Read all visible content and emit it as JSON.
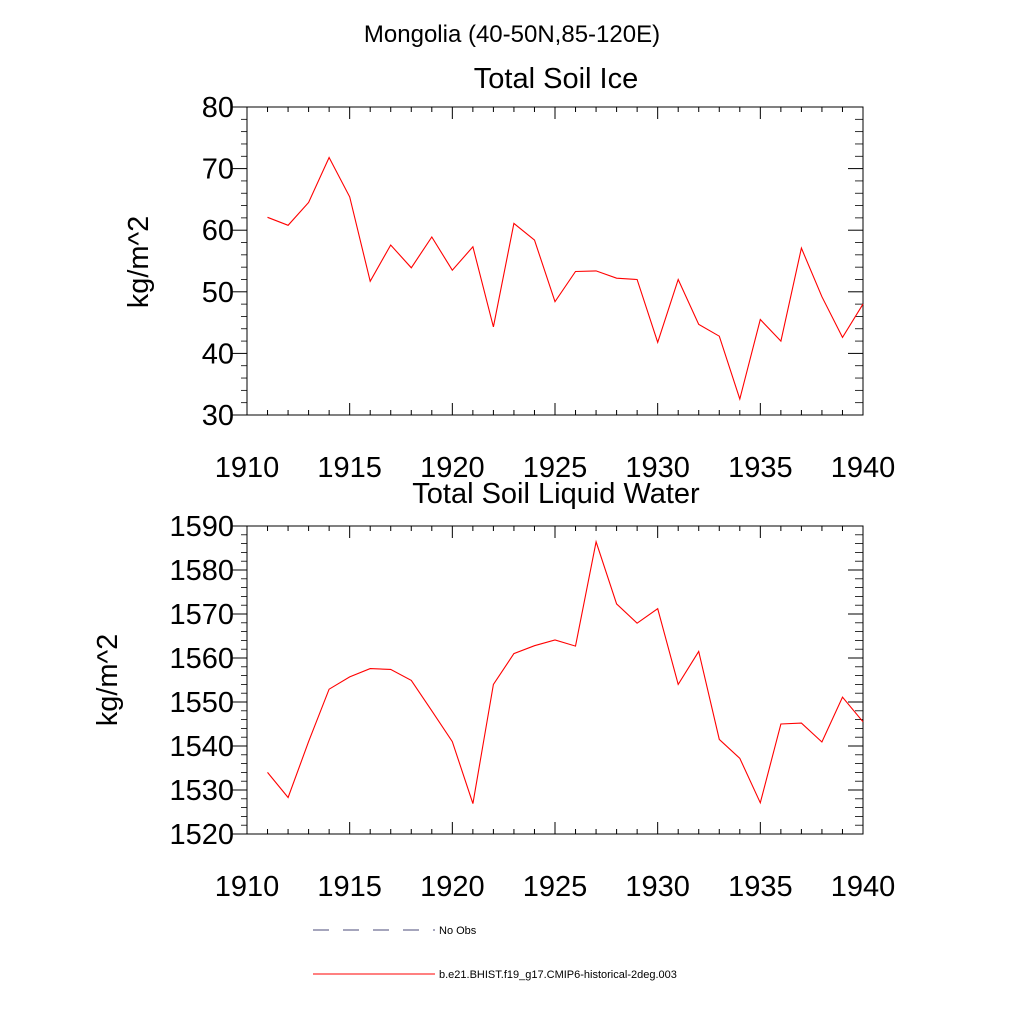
{
  "figure": {
    "main_title": "Mongolia (40-50N,85-120E)"
  },
  "colors": {
    "series": "#ff0000",
    "no_obs": "#4b4b7a",
    "axes": "#000000"
  },
  "chart_data": [
    {
      "type": "line",
      "title": "Total Soil Ice",
      "xlabel": "",
      "ylabel": "kg/m^2",
      "xlim": [
        1910,
        1940
      ],
      "ylim": [
        30,
        80
      ],
      "x_ticks": [
        "1910",
        "1915",
        "1920",
        "1925",
        "1930",
        "1935",
        "1940"
      ],
      "y_ticks": [
        "30",
        "40",
        "50",
        "60",
        "70",
        "80"
      ],
      "grid": false,
      "series": [
        {
          "name": "b.e21.BHIST.f19_g17.CMIP6-historical-2deg.003",
          "x": [
            1911,
            1912,
            1913,
            1914,
            1915,
            1916,
            1917,
            1918,
            1919,
            1920,
            1921,
            1922,
            1923,
            1924,
            1925,
            1926,
            1927,
            1928,
            1929,
            1930,
            1931,
            1932,
            1933,
            1934,
            1935,
            1936,
            1937,
            1938,
            1939,
            1940
          ],
          "values": [
            62.1,
            60.8,
            64.5,
            71.8,
            65.4,
            51.7,
            57.6,
            53.9,
            58.9,
            53.5,
            57.3,
            44.3,
            61.1,
            58.4,
            48.4,
            53.3,
            53.4,
            52.2,
            52.0,
            41.8,
            52.0,
            44.7,
            42.8,
            32.6,
            45.5,
            42.0,
            57.1,
            49.2,
            42.6,
            48.0
          ]
        }
      ]
    },
    {
      "type": "line",
      "title": "Total Soil Liquid Water",
      "xlabel": "",
      "ylabel": "kg/m^2",
      "xlim": [
        1910,
        1940
      ],
      "ylim": [
        1520,
        1590
      ],
      "x_ticks": [
        "1910",
        "1915",
        "1920",
        "1925",
        "1930",
        "1935",
        "1940"
      ],
      "y_ticks": [
        "1520",
        "1530",
        "1540",
        "1550",
        "1560",
        "1570",
        "1580",
        "1590"
      ],
      "grid": false,
      "series": [
        {
          "name": "b.e21.BHIST.f19_g17.CMIP6-historical-2deg.003",
          "x": [
            1911,
            1912,
            1913,
            1914,
            1915,
            1916,
            1917,
            1918,
            1919,
            1920,
            1921,
            1922,
            1923,
            1924,
            1925,
            1926,
            1927,
            1928,
            1929,
            1930,
            1931,
            1932,
            1933,
            1934,
            1935,
            1936,
            1937,
            1938,
            1939,
            1940
          ],
          "values": [
            1534.0,
            1528.3,
            1541.0,
            1552.9,
            1555.7,
            1557.6,
            1557.4,
            1554.9,
            1548.0,
            1541.0,
            1526.9,
            1554.0,
            1561.0,
            1562.8,
            1564.1,
            1562.7,
            1586.4,
            1572.3,
            1567.9,
            1571.2,
            1554.0,
            1561.5,
            1541.5,
            1537.2,
            1527.1,
            1545.0,
            1545.2,
            1540.9,
            1551.1,
            1545.5
          ]
        }
      ]
    }
  ],
  "legend": {
    "placement": "bottom",
    "entries": [
      {
        "label": "No Obs",
        "style": "dashed"
      },
      {
        "label": "b.e21.BHIST.f19_g17.CMIP6-historical-2deg.003",
        "style": "solid"
      }
    ]
  }
}
